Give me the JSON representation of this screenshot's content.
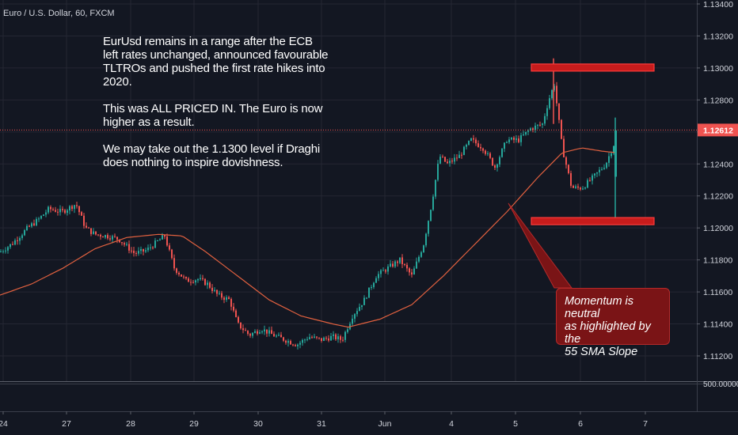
{
  "symbol_title": "Euro / U.S. Dollar, 60, FXCM",
  "annotation": {
    "lines": [
      "EurUsd remains in a range after the ECB",
      "left rates unchanged, announced favourable",
      "TLTROs and pushed the first rate hikes into",
      "2020.",
      "",
      "This was ALL PRICED IN. The Euro is now",
      "higher as a result.",
      "",
      "We may take out the 1.1300 level if Draghi",
      "does nothing to inspire dovishness."
    ]
  },
  "callout": {
    "lines": [
      "Momentum is neutral",
      "as highlighted by the",
      "55 SMA Slope"
    ]
  },
  "colors": {
    "background": "#131722",
    "grid": "#242733",
    "up": "#26a69a",
    "down": "#ef5350",
    "sma": "#e0603f",
    "price_line": "#ef5350",
    "zone_fill": "#c71c1c",
    "zone_border": "#ff3b3b"
  },
  "chart_data": {
    "type": "candlestick",
    "y_ticks": [
      "1.13400",
      "1.13200",
      "1.13000",
      "1.12800",
      "1.12600",
      "1.12400",
      "1.12200",
      "1.12000",
      "1.11800",
      "1.11600",
      "1.11400",
      "1.11200"
    ],
    "ylim": [
      1.1112,
      1.1342
    ],
    "x_ticks": [
      "24",
      "27",
      "28",
      "29",
      "30",
      "31",
      "Jun",
      "4",
      "5",
      "6",
      "7"
    ],
    "last_price": "1.12612",
    "last_price_value": 1.12612,
    "volume_axis_label": "500.00000",
    "resistance_zone": 1.13,
    "support_zone": 1.1204,
    "sma_label": "55 SMA",
    "price_anchors": [
      [
        0,
        1.1185
      ],
      [
        15,
        1.119
      ],
      [
        25,
        1.1195
      ],
      [
        35,
        1.12
      ],
      [
        48,
        1.1205
      ],
      [
        62,
        1.1212
      ],
      [
        78,
        1.121
      ],
      [
        96,
        1.1215
      ],
      [
        108,
        1.12
      ],
      [
        120,
        1.1196
      ],
      [
        135,
        1.1195
      ],
      [
        150,
        1.1193
      ],
      [
        170,
        1.1184
      ],
      [
        185,
        1.1186
      ],
      [
        195,
        1.119
      ],
      [
        208,
        1.1195
      ],
      [
        220,
        1.1175
      ],
      [
        235,
        1.1167
      ],
      [
        250,
        1.1168
      ],
      [
        262,
        1.1165
      ],
      [
        275,
        1.1158
      ],
      [
        290,
        1.1155
      ],
      [
        300,
        1.114
      ],
      [
        315,
        1.1133
      ],
      [
        330,
        1.1137
      ],
      [
        345,
        1.1133
      ],
      [
        360,
        1.113
      ],
      [
        375,
        1.1127
      ],
      [
        390,
        1.1132
      ],
      [
        405,
        1.113
      ],
      [
        420,
        1.1132
      ],
      [
        432,
        1.113
      ],
      [
        445,
        1.1145
      ],
      [
        460,
        1.1155
      ],
      [
        475,
        1.117
      ],
      [
        490,
        1.1175
      ],
      [
        505,
        1.118
      ],
      [
        520,
        1.117
      ],
      [
        535,
        1.119
      ],
      [
        545,
        1.1215
      ],
      [
        555,
        1.1245
      ],
      [
        565,
        1.124
      ],
      [
        580,
        1.1245
      ],
      [
        595,
        1.1255
      ],
      [
        610,
        1.125
      ],
      [
        625,
        1.1238
      ],
      [
        640,
        1.1255
      ],
      [
        655,
        1.1255
      ],
      [
        670,
        1.1262
      ],
      [
        685,
        1.1265
      ],
      [
        693,
        1.128
      ],
      [
        700,
        1.129
      ],
      [
        710,
        1.125
      ],
      [
        722,
        1.1225
      ],
      [
        735,
        1.1225
      ],
      [
        750,
        1.1232
      ],
      [
        765,
        1.124
      ],
      [
        775,
        1.1252
      ],
      [
        780,
        1.1261
      ]
    ],
    "sma_anchors": [
      [
        0,
        1.1158
      ],
      [
        40,
        1.1165
      ],
      [
        80,
        1.1175
      ],
      [
        120,
        1.1187
      ],
      [
        160,
        1.1194
      ],
      [
        200,
        1.1196
      ],
      [
        230,
        1.1195
      ],
      [
        260,
        1.1185
      ],
      [
        300,
        1.117
      ],
      [
        340,
        1.1155
      ],
      [
        380,
        1.1145
      ],
      [
        420,
        1.114
      ],
      [
        440,
        1.1138
      ],
      [
        480,
        1.1143
      ],
      [
        520,
        1.1152
      ],
      [
        560,
        1.117
      ],
      [
        600,
        1.119
      ],
      [
        640,
        1.121
      ],
      [
        680,
        1.1232
      ],
      [
        710,
        1.1247
      ],
      [
        735,
        1.125
      ],
      [
        760,
        1.1248
      ],
      [
        778,
        1.1247
      ]
    ]
  }
}
